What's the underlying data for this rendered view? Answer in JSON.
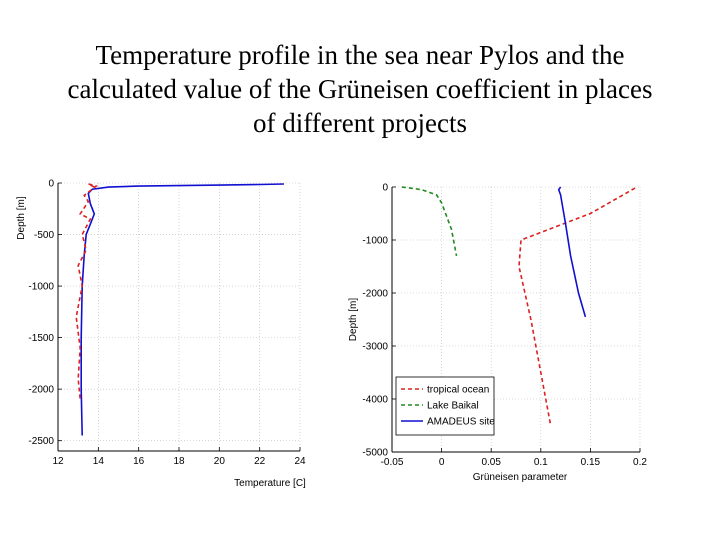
{
  "slide": {
    "title_lines": [
      "Temperature profile in the sea near Pylos and the",
      "calculated value of the Grüneisen coefficient in places",
      "of different projects"
    ]
  },
  "chart_data": [
    {
      "type": "line",
      "title": "",
      "xlabel": "Temperature [C]",
      "ylabel": "Depth [m]",
      "xlim": [
        12,
        24
      ],
      "ylim": [
        -2600,
        0
      ],
      "xticks": [
        12,
        14,
        16,
        18,
        20,
        22,
        24
      ],
      "yticks": [
        0,
        -500,
        -1000,
        -1500,
        -2000,
        -2500
      ],
      "grid": true,
      "series": [
        {
          "color": "#1010d0",
          "style": "solid",
          "points": [
            [
              23.2,
              -10
            ],
            [
              22,
              -15
            ],
            [
              20,
              -20
            ],
            [
              18,
              -25
            ],
            [
              16,
              -30
            ],
            [
              14.5,
              -40
            ],
            [
              13.7,
              -60
            ],
            [
              13.5,
              -100
            ],
            [
              13.6,
              -200
            ],
            [
              13.8,
              -300
            ],
            [
              13.6,
              -400
            ],
            [
              13.4,
              -500
            ],
            [
              13.3,
              -700
            ],
            [
              13.2,
              -1000
            ],
            [
              13.15,
              -1500
            ],
            [
              13.15,
              -2000
            ],
            [
              13.2,
              -2450
            ]
          ]
        },
        {
          "color": "#dd2020",
          "style": "dashed",
          "points": [
            [
              13.8,
              -40
            ],
            [
              13.5,
              -10
            ],
            [
              13.9,
              -30
            ],
            [
              13.3,
              -120
            ],
            [
              13.5,
              -180
            ],
            [
              13.1,
              -300
            ],
            [
              13.6,
              -350
            ],
            [
              13.2,
              -500
            ],
            [
              13.4,
              -650
            ],
            [
              13.0,
              -800
            ],
            [
              13.2,
              -1000
            ],
            [
              12.9,
              -1300
            ],
            [
              13.1,
              -1600
            ],
            [
              13.0,
              -1900
            ],
            [
              13.1,
              -2100
            ]
          ]
        }
      ]
    },
    {
      "type": "line",
      "title": "",
      "xlabel": "Grüneisen parameter",
      "ylabel": "Depth [m]",
      "xlim": [
        -0.05,
        0.2
      ],
      "ylim": [
        -5000,
        0
      ],
      "xticks": [
        "-0.05",
        "0",
        "0.05",
        "0.1",
        "0.15",
        "0.2"
      ],
      "yticks": [
        "0",
        "-1000",
        "-2000",
        "-3000",
        "-4000",
        "-5000"
      ],
      "grid": true,
      "legend_position": "bottom-left",
      "series": [
        {
          "name": "tropical ocean",
          "color": "#dd2020",
          "style": "dashed",
          "points": [
            [
              0.195,
              -20
            ],
            [
              0.15,
              -500
            ],
            [
              0.08,
              -1000
            ],
            [
              0.078,
              -1500
            ],
            [
              0.09,
              -2500
            ],
            [
              0.1,
              -3500
            ],
            [
              0.11,
              -4500
            ]
          ]
        },
        {
          "name": "Lake Baikal",
          "color": "#208a20",
          "style": "dashed",
          "points": [
            [
              -0.04,
              0
            ],
            [
              -0.02,
              -50
            ],
            [
              -0.005,
              -150
            ],
            [
              0.0,
              -300
            ],
            [
              0.01,
              -800
            ],
            [
              0.015,
              -1300
            ]
          ]
        },
        {
          "name": "AMADEUS site",
          "color": "#1010d0",
          "style": "solid",
          "points": [
            [
              0.12,
              0
            ],
            [
              0.118,
              -50
            ],
            [
              0.12,
              -150
            ],
            [
              0.125,
              -700
            ],
            [
              0.13,
              -1300
            ],
            [
              0.138,
              -2000
            ],
            [
              0.145,
              -2450
            ]
          ]
        }
      ]
    }
  ]
}
